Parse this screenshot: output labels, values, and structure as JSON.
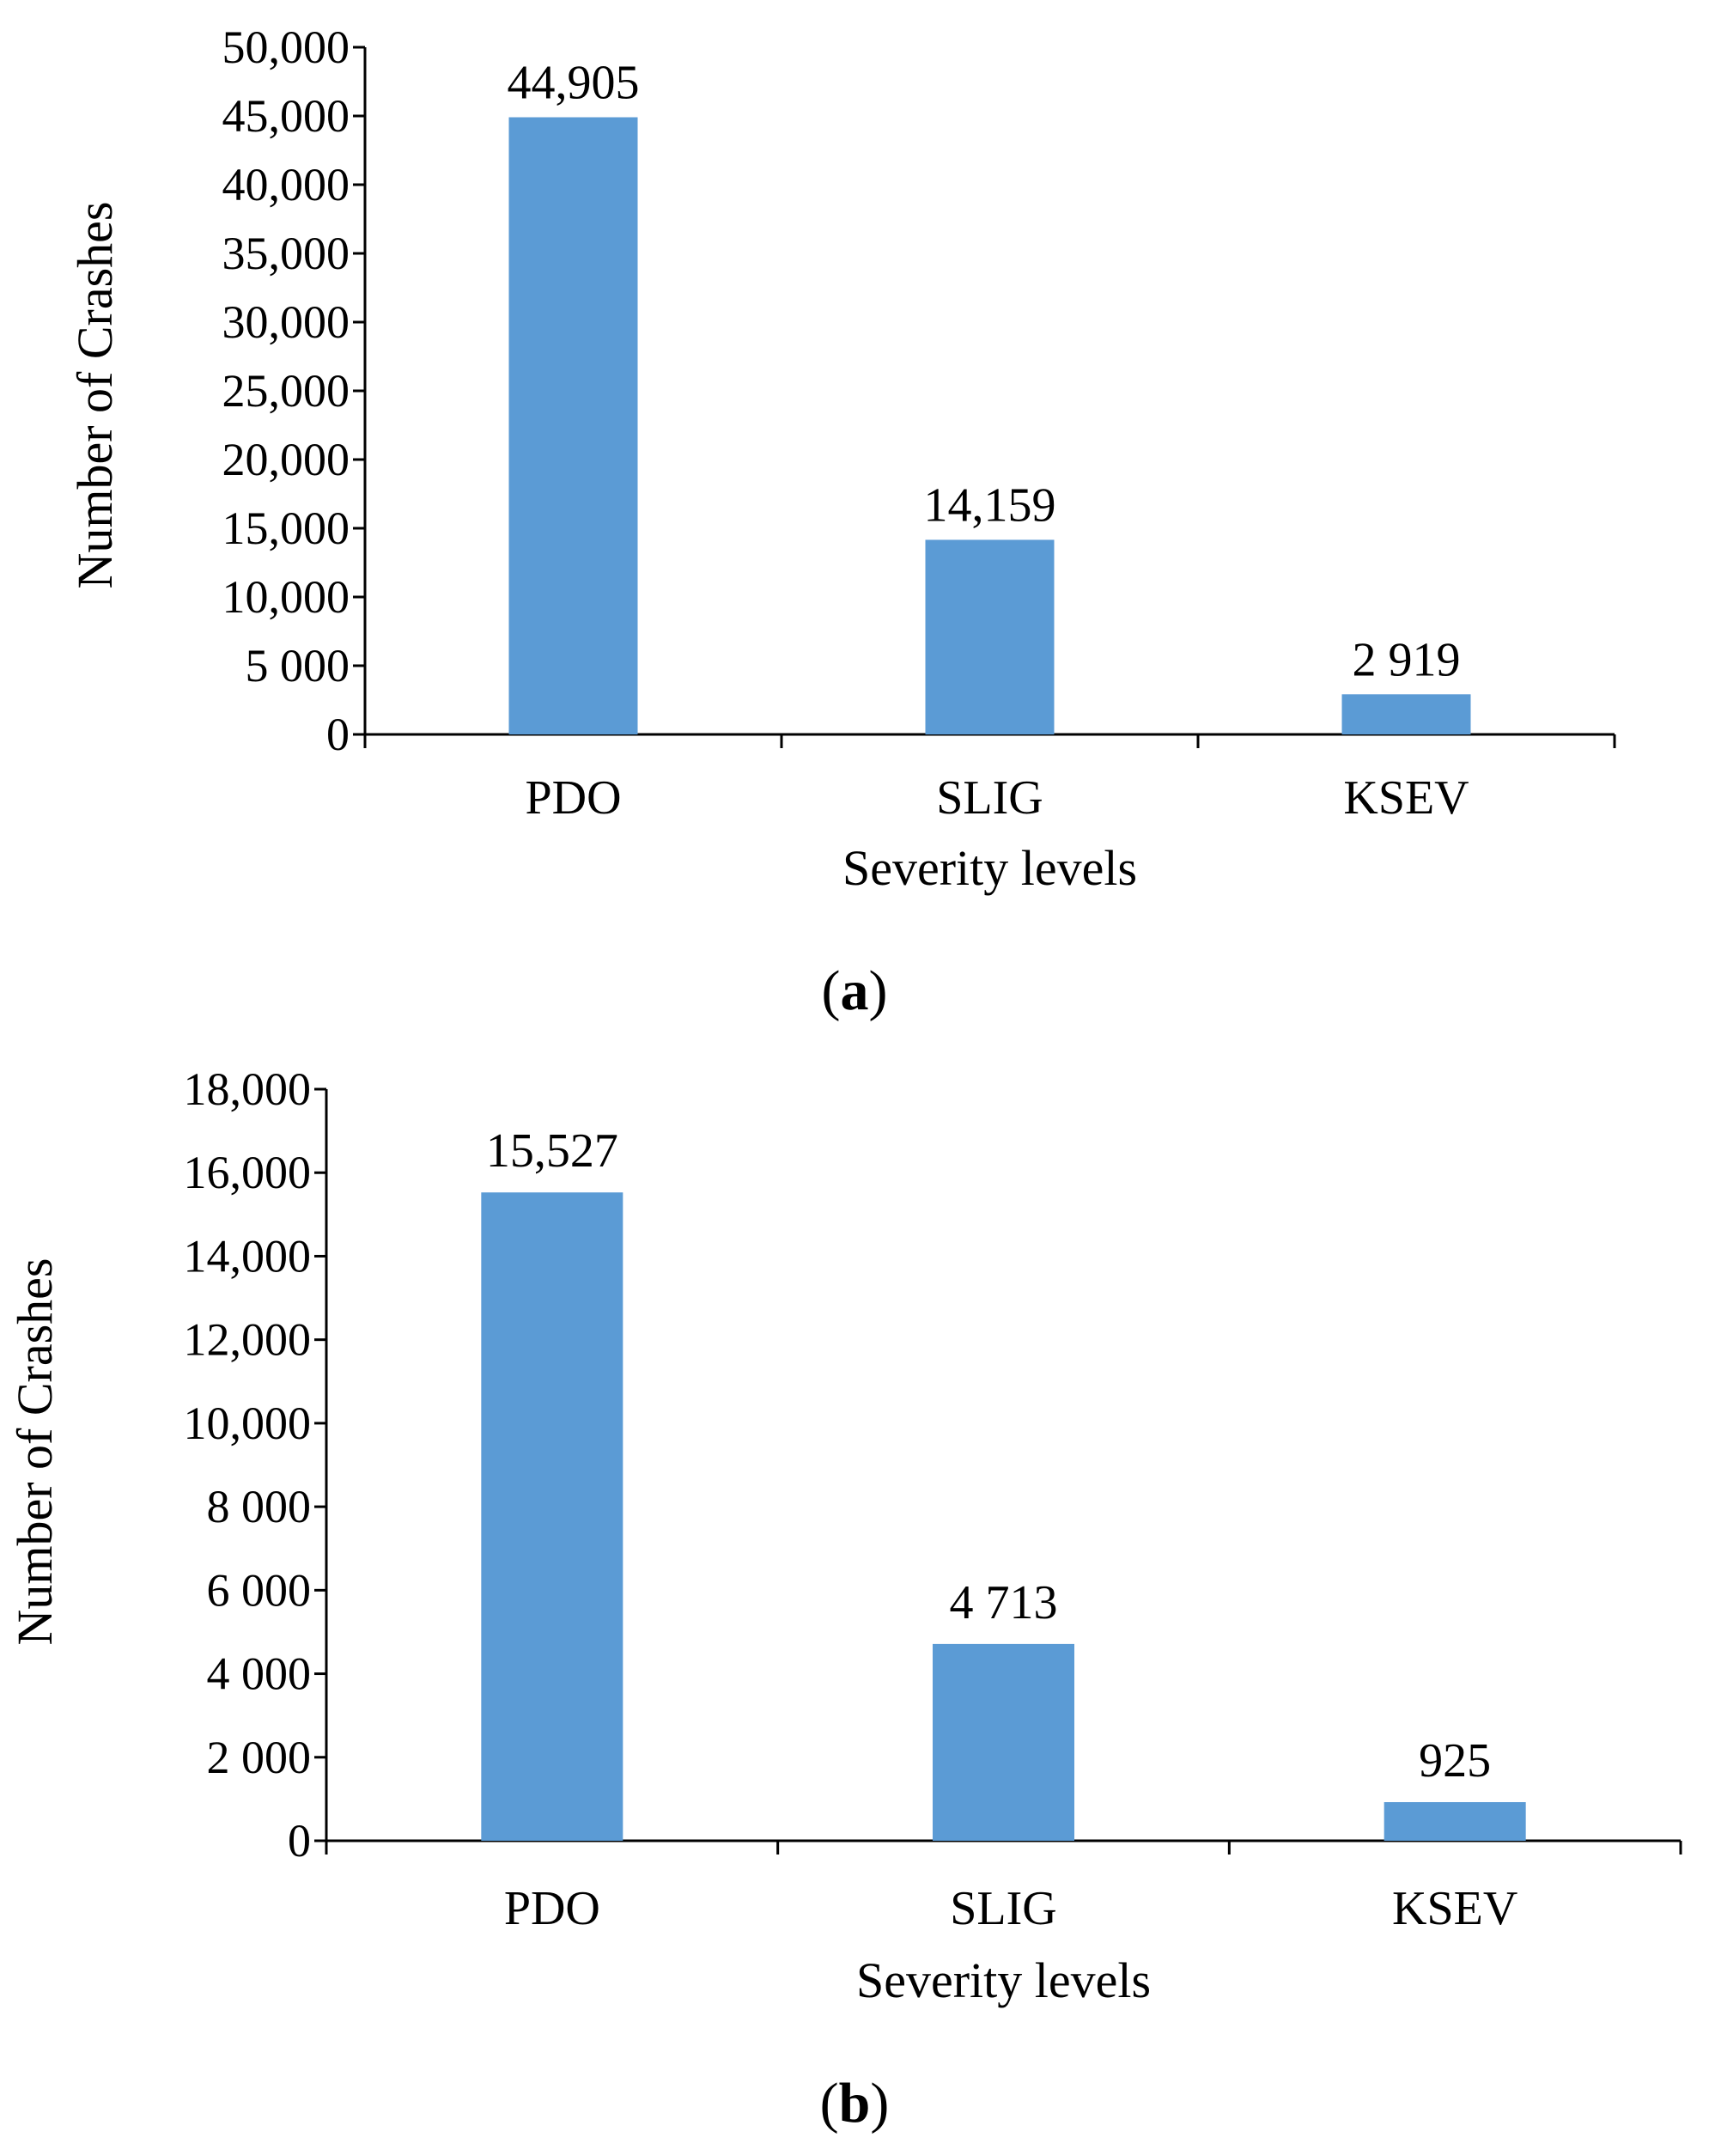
{
  "chart_data": [
    {
      "type": "bar",
      "panel_label": "a",
      "categories": [
        "PDO",
        "SLIG",
        "KSEV"
      ],
      "values": [
        44905,
        14159,
        2919
      ],
      "data_labels": [
        "44,905",
        "14,159",
        "2 919"
      ],
      "title": "",
      "xlabel": "Severity levels",
      "ylabel": "Number of Crashes",
      "ylim": [
        0,
        50000
      ],
      "yticks": [
        0,
        5000,
        10000,
        15000,
        20000,
        25000,
        30000,
        35000,
        40000,
        45000,
        50000
      ],
      "ytick_labels": [
        "0",
        "5 000",
        "10,000",
        "15,000",
        "20,000",
        "25,000",
        "30,000",
        "35,000",
        "40,000",
        "45,000",
        "50,000"
      ],
      "bar_color": "#5b9bd5"
    },
    {
      "type": "bar",
      "panel_label": "b",
      "categories": [
        "PDO",
        "SLIG",
        "KSEV"
      ],
      "values": [
        15527,
        4713,
        925
      ],
      "data_labels": [
        "15,527",
        "4 713",
        "925"
      ],
      "title": "",
      "xlabel": "Severity levels",
      "ylabel": "Number of Crashes",
      "ylim": [
        0,
        18000
      ],
      "yticks": [
        0,
        2000,
        4000,
        6000,
        8000,
        10000,
        12000,
        14000,
        16000,
        18000
      ],
      "ytick_labels": [
        "0",
        "2 000",
        "4 000",
        "6 000",
        "8 000",
        "10,000",
        "12,000",
        "14,000",
        "16,000",
        "18,000"
      ],
      "bar_color": "#5b9bd5"
    }
  ]
}
